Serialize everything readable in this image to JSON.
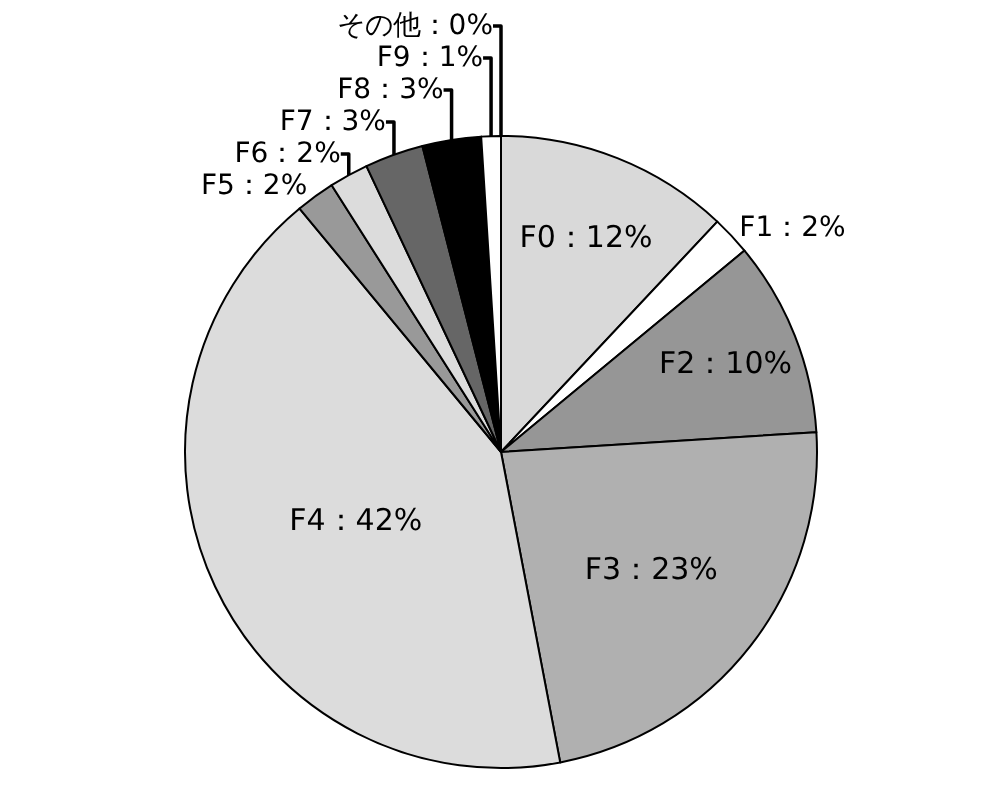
{
  "chart_data": {
    "type": "pie",
    "categories": [
      "F0",
      "F1",
      "F2",
      "F3",
      "F4",
      "F5",
      "F6",
      "F7",
      "F8",
      "F9",
      "その他"
    ],
    "values": [
      12,
      2,
      10,
      23,
      42,
      2,
      2,
      3,
      3,
      1,
      0
    ],
    "value_labels": [
      "：12%",
      "：2%",
      "：10%",
      "：23%",
      "：42%",
      "：2%",
      "：2%",
      "：3%",
      "：3%",
      "：1%",
      "：0%"
    ],
    "colors": [
      "#d9d9d9",
      "#ffffff",
      "#969696",
      "#b0b0b0",
      "#dcdcdc",
      "#999999",
      "#dcdcdc",
      "#666666",
      "#000000",
      "#ffffff",
      "#bfbfbf"
    ]
  }
}
